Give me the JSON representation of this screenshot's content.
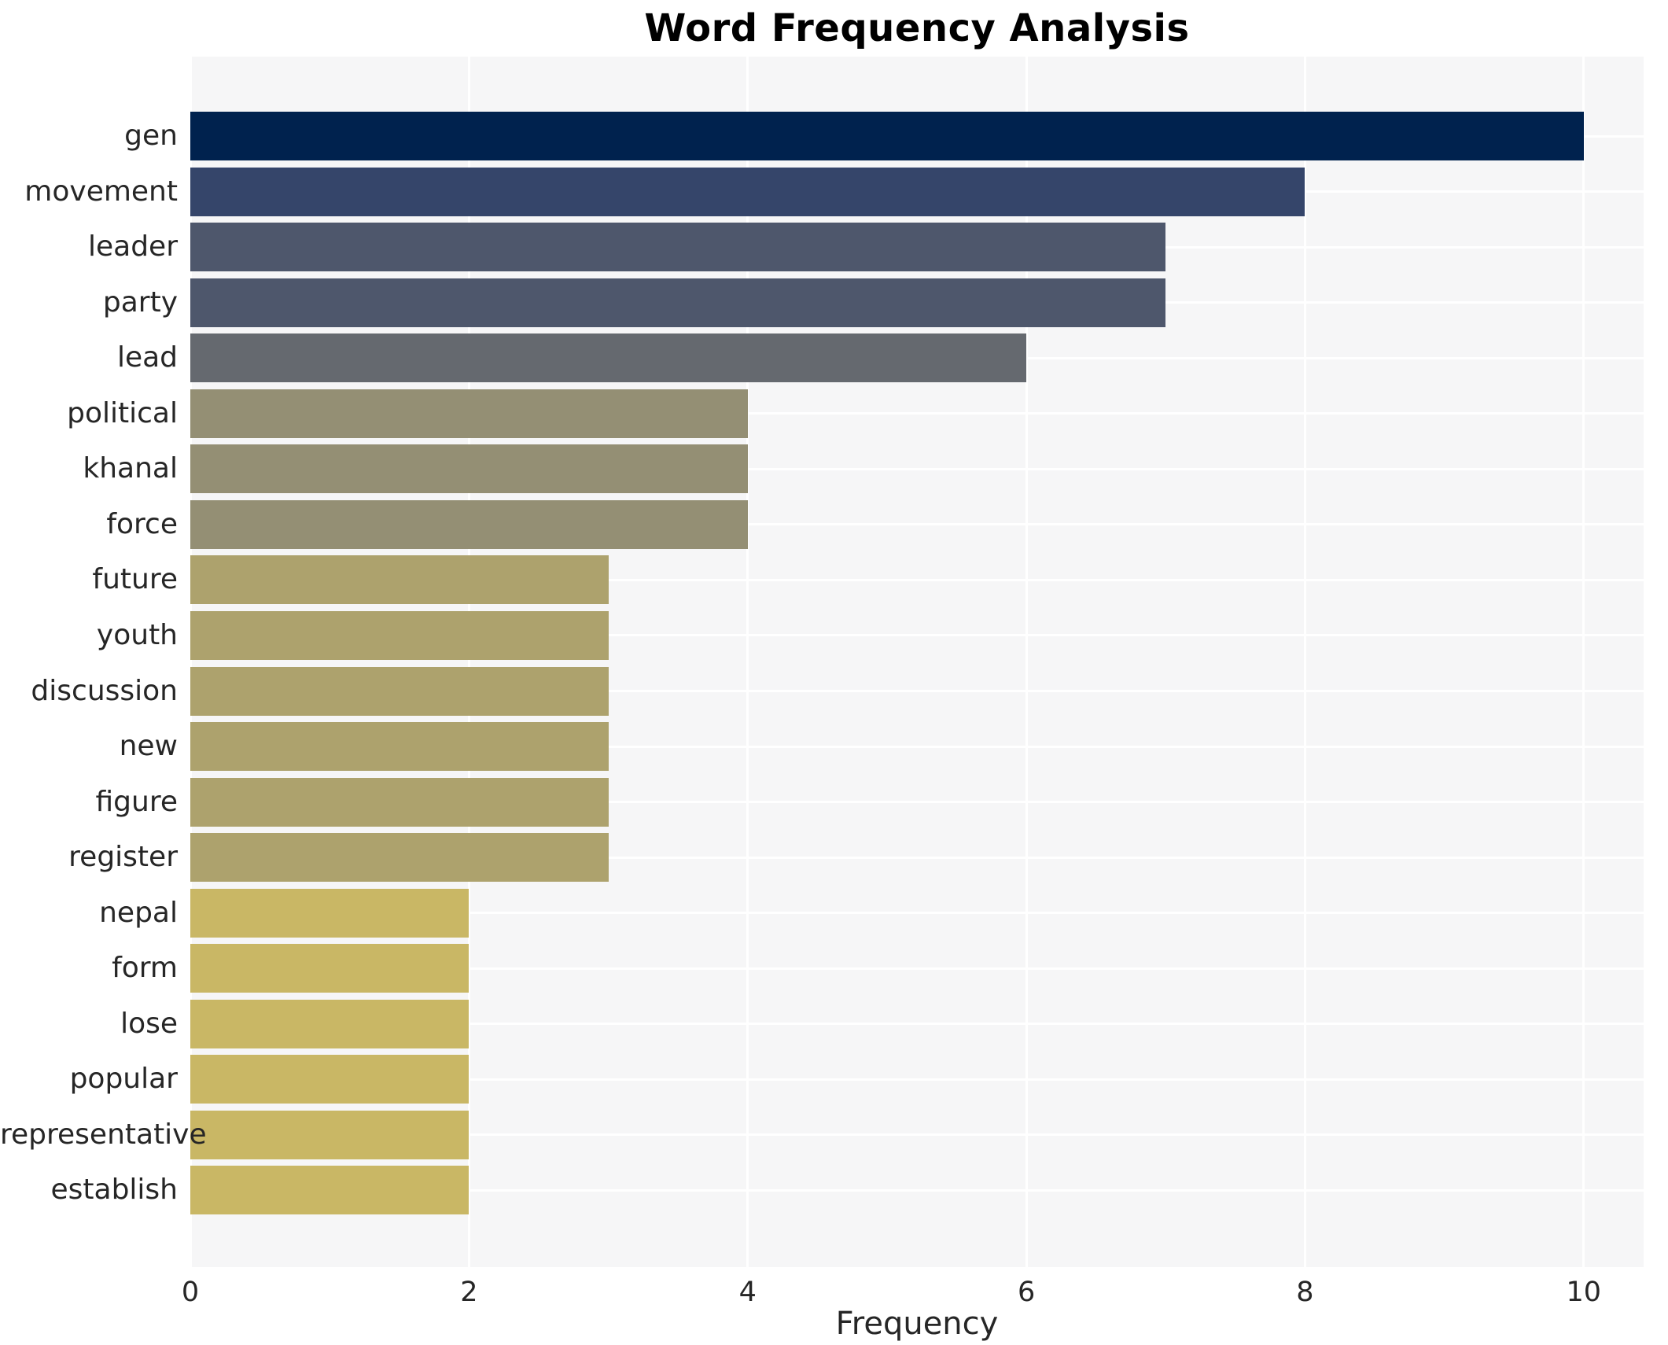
{
  "title": "Word Frequency Analysis",
  "chart_data": {
    "type": "bar",
    "orientation": "horizontal",
    "title": "Word Frequency Analysis",
    "xlabel": "Frequency",
    "ylabel": "",
    "categories": [
      "gen",
      "movement",
      "leader",
      "party",
      "lead",
      "political",
      "khanal",
      "force",
      "future",
      "youth",
      "discussion",
      "new",
      "figure",
      "register",
      "nepal",
      "form",
      "lose",
      "popular",
      "representative",
      "establish"
    ],
    "values": [
      10,
      8,
      7,
      7,
      6,
      4,
      4,
      4,
      3,
      3,
      3,
      3,
      3,
      3,
      2,
      2,
      2,
      2,
      2,
      2
    ],
    "xlim": [
      0,
      10.43
    ],
    "xticks": [
      0,
      2,
      4,
      6,
      8,
      10
    ],
    "grid": true,
    "legend": false,
    "colors": {
      "plot_background": "#f6f6f7",
      "gridline": "#ffffff",
      "title_text": "#000000",
      "tick_text": "#262626",
      "bar_color_by_value": {
        "10": "#00224e",
        "8": "#35456a",
        "7": "#4e576c",
        "6": "#65696f",
        "4": "#948f74",
        "3": "#ada26d",
        "2": "#c9b765"
      }
    }
  }
}
